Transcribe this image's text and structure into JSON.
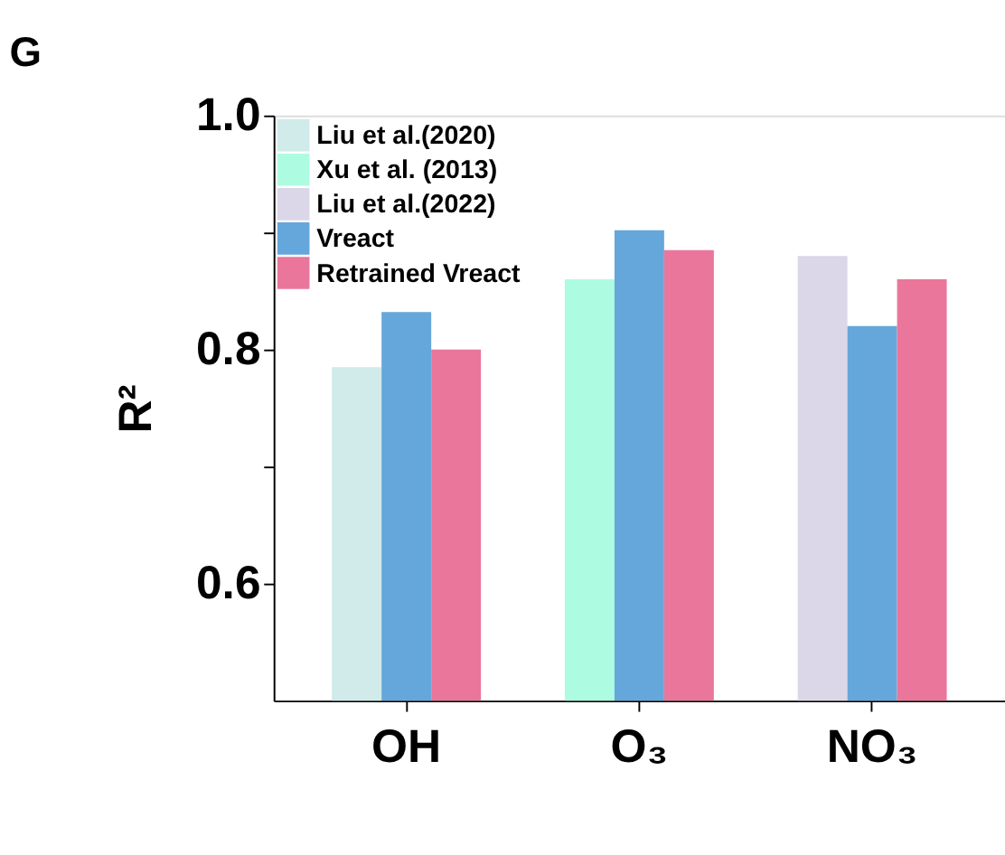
{
  "chart_data": {
    "type": "bar",
    "title": "G",
    "ylabel": "R²",
    "categories": [
      "OH",
      "O₃",
      "NO₃"
    ],
    "series": [
      {
        "name": "Liu et al.(2020)",
        "color": "#d1eaea",
        "values": [
          0.785,
          null,
          null
        ]
      },
      {
        "name": "Xu et al. (2013)",
        "color": "#adfce2",
        "values": [
          null,
          0.86,
          null
        ]
      },
      {
        "name": "Liu et al.(2022)",
        "color": "#dbd7e8",
        "values": [
          null,
          null,
          0.88
        ]
      },
      {
        "name": "Vreact",
        "color": "#65a7da",
        "values": [
          0.832,
          0.902,
          0.82
        ]
      },
      {
        "name": "Retrained Vreact",
        "color": "#ea769b",
        "values": [
          0.8,
          0.885,
          0.86
        ]
      }
    ],
    "ylim": [
      0.5,
      1.0
    ],
    "yticks": [
      0.6,
      {
        "value": 0.7,
        "label": null
      },
      0.8,
      {
        "value": 0.9,
        "label": null
      },
      {
        "value": 1.0,
        "label": "1.0"
      }
    ],
    "grid": false,
    "legend": "top left"
  }
}
